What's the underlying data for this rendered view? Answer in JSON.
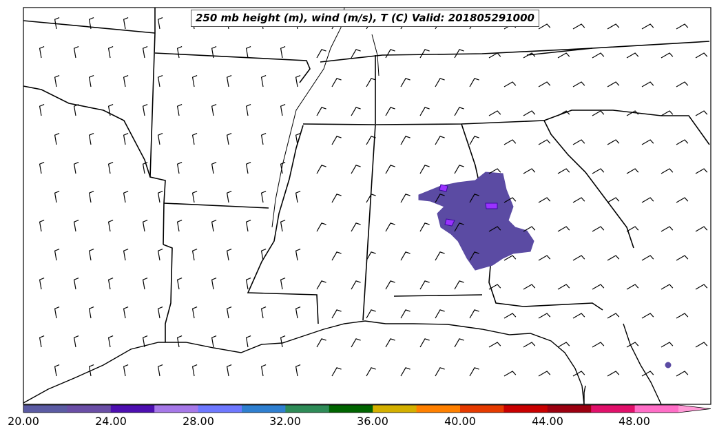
{
  "title": "250 mb height (m), wind (m/s), T (C) Valid: 201805291000",
  "colorbar": {
    "tick_labels": [
      "20.00",
      "24.00",
      "28.00",
      "32.00",
      "36.00",
      "40.00",
      "44.00",
      "48.00"
    ],
    "colors": [
      "#5b5ba3",
      "#6a4ea6",
      "#4d0fb0",
      "#a678e8",
      "#6e78ff",
      "#2f7fd0",
      "#2e8b57",
      "#006400",
      "#d4b000",
      "#ff8000",
      "#e53a00",
      "#c80000",
      "#9b0010",
      "#e0106a",
      "#ff6ec7"
    ],
    "extend_color": "#ff9ad6"
  },
  "wind_barb_color": "#000000",
  "map_line_color": "#000000",
  "shading_color": "#5b4ba3",
  "highlight_color": "#9a32ff"
}
